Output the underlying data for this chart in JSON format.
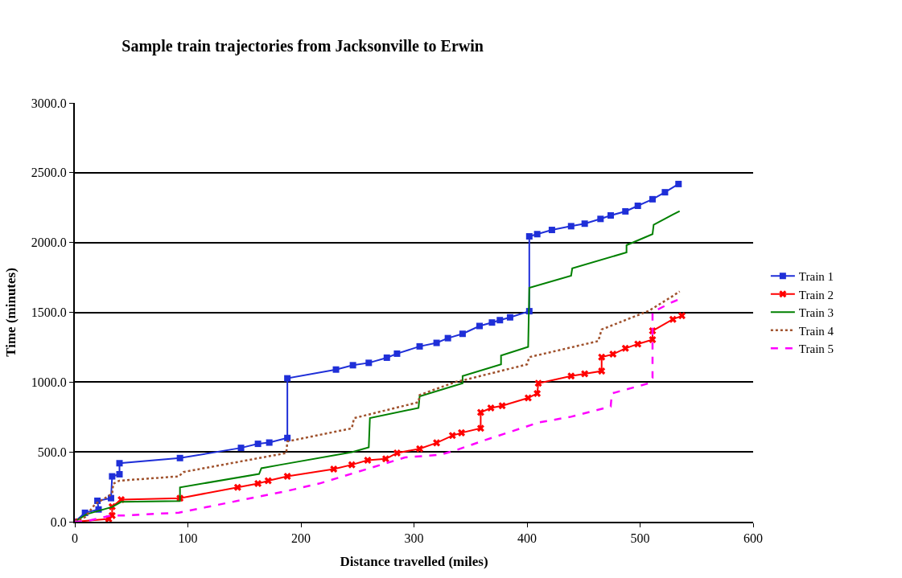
{
  "chart_data": {
    "type": "line",
    "title": "Sample train trajectories from Jacksonville to Erwin",
    "xlabel": "Distance travelled (miles)",
    "ylabel": "Time (minutes)",
    "xlim": [
      0,
      600
    ],
    "xticks": [
      0,
      100,
      200,
      300,
      400,
      500,
      600
    ],
    "ylim": [
      0,
      3000
    ],
    "yticks": [
      {
        "value": 0,
        "label": "0.0"
      },
      {
        "value": 500,
        "label": "500.0"
      },
      {
        "value": 1000,
        "label": "1000.0"
      },
      {
        "value": 1500,
        "label": "1500.0"
      },
      {
        "value": 2000,
        "label": "2000.0"
      },
      {
        "value": 2500,
        "label": "2500.0"
      },
      {
        "value": 3000,
        "label": "3000.0"
      }
    ],
    "grid": "y",
    "legend": "right",
    "series": [
      {
        "name": "Train 1",
        "color": "#1f2fd8",
        "marker": "square",
        "line_style": "solid",
        "x": [
          0,
          9,
          21,
          20,
          32,
          33,
          39.5,
          39.5,
          93,
          147,
          162,
          172,
          188,
          188,
          231,
          246,
          260,
          276,
          285,
          305,
          320,
          330,
          343,
          358,
          369,
          376,
          385,
          402,
          402,
          409,
          422,
          439,
          451,
          465,
          474,
          487,
          498,
          511,
          522,
          534
        ],
        "values": [
          0,
          64,
          88,
          150,
          169,
          325,
          340,
          419,
          456,
          529,
          558,
          567,
          600,
          1027,
          1090,
          1121,
          1138,
          1175,
          1204,
          1256,
          1281,
          1315,
          1346,
          1402,
          1427,
          1444,
          1464,
          1508,
          2044,
          2060,
          2090,
          2117,
          2135,
          2169,
          2194,
          2223,
          2263,
          2310,
          2360,
          2419
        ]
      },
      {
        "name": "Train 2",
        "color": "#ff0000",
        "marker": "cross",
        "line_style": "solid",
        "x": [
          0,
          30,
          33,
          33,
          41,
          93,
          144,
          162,
          171,
          188,
          229,
          245,
          259,
          275,
          285,
          305,
          320,
          334,
          342,
          359,
          359,
          368,
          378,
          401,
          409,
          410,
          439,
          451,
          466,
          466,
          476,
          487,
          498,
          511,
          511,
          529,
          537
        ],
        "values": [
          0,
          20,
          44,
          108,
          158,
          169,
          246,
          273,
          294,
          325,
          377,
          408,
          440,
          450,
          492,
          523,
          565,
          617,
          637,
          669,
          783,
          815,
          831,
          887,
          919,
          992,
          1044,
          1060,
          1079,
          1179,
          1200,
          1242,
          1273,
          1304,
          1367,
          1450,
          1475
        ]
      },
      {
        "name": "Train 3",
        "color": "#008000",
        "marker": "none",
        "line_style": "solid",
        "x": [
          0,
          10.5,
          33,
          41,
          93,
          93,
          163,
          165,
          182,
          245,
          260,
          261,
          304,
          305,
          343,
          343,
          377,
          377,
          401,
          402,
          439,
          440,
          488,
          488,
          511,
          512,
          529,
          535
        ],
        "values": [
          0,
          54,
          106,
          142,
          148,
          246,
          342,
          383,
          408,
          498,
          533,
          742,
          815,
          898,
          992,
          1044,
          1127,
          1190,
          1252,
          1675,
          1762,
          1815,
          1929,
          1981,
          2060,
          2127,
          2200,
          2225
        ]
      },
      {
        "name": "Train 4",
        "color": "#a0522d",
        "marker": "none",
        "line_style": "dotted",
        "x": [
          0,
          9,
          18,
          33,
          34,
          39.5,
          92,
          96,
          187,
          188,
          245,
          247,
          304,
          305,
          337,
          343,
          400,
          402,
          463,
          466,
          508,
          529,
          535
        ],
        "values": [
          0,
          33,
          127,
          200,
          273,
          294,
          325,
          356,
          492,
          575,
          669,
          742,
          856,
          908,
          1002,
          1012,
          1127,
          1179,
          1294,
          1377,
          1512,
          1617,
          1650
        ]
      },
      {
        "name": "Train 5",
        "color": "#ff00ff",
        "marker": "none",
        "line_style": "dashed",
        "x": [
          0,
          9,
          32,
          41,
          92,
          188,
          216,
          292,
          324,
          337,
          363,
          410,
          439,
          474,
          475,
          508,
          511,
          511,
          529,
          535
        ],
        "values": [
          0,
          2,
          44,
          44,
          65,
          221,
          273,
          460,
          481,
          512,
          585,
          710,
          752,
          825,
          919,
          992,
          1030,
          1502,
          1575,
          1594
        ]
      }
    ]
  }
}
